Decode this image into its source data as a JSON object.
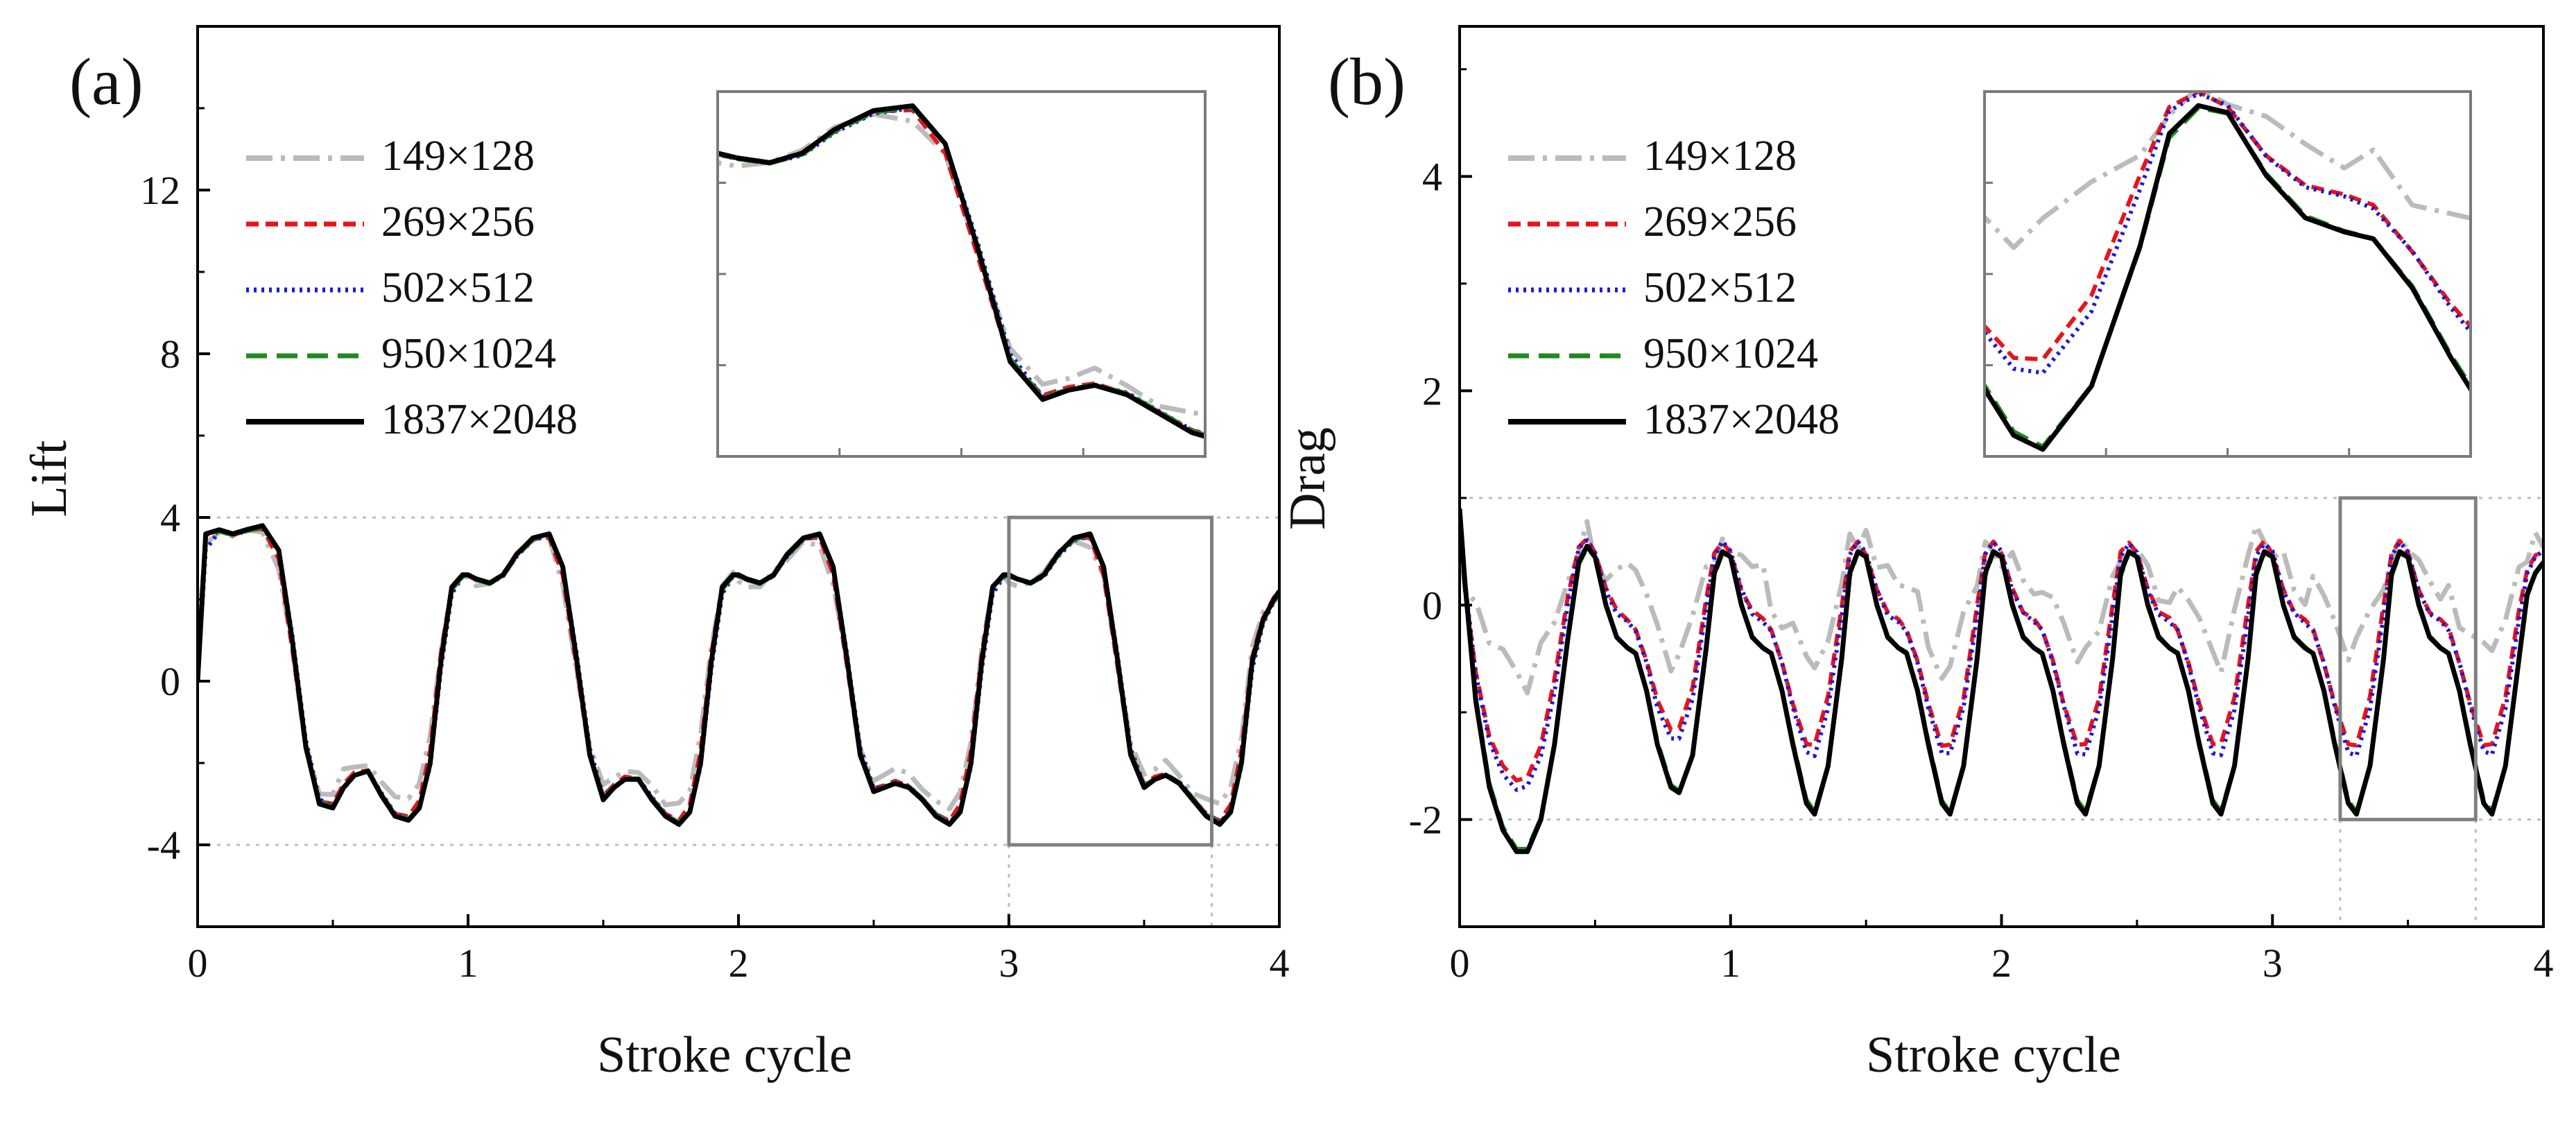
{
  "chart_data": [
    {
      "id": "a",
      "type": "line",
      "panel_label": "(a)",
      "xlabel": "Stroke cycle",
      "ylabel": "Lift",
      "xlim": [
        0,
        4
      ],
      "ylim": [
        -6,
        16
      ],
      "xticks": [
        0,
        1,
        2,
        3,
        4
      ],
      "xtick_labels": [
        "0",
        "1",
        "2",
        "3",
        "4"
      ],
      "yticks": [
        -4,
        0,
        4,
        8,
        12
      ],
      "ytick_labels": [
        "-4",
        "0",
        "4",
        "8",
        "12"
      ],
      "guide_lines_y": [
        4,
        -4
      ],
      "zoom_box": {
        "x": [
          3,
          3.75
        ],
        "y": [
          -4,
          4
        ]
      },
      "legend": [
        "149×128",
        "269×256",
        "502×512",
        "950×1024",
        "1837×2048"
      ],
      "legend_position": "top-left",
      "inset_position": "top-right",
      "series": [
        {
          "name": "1837×2048",
          "color": "#000000",
          "x": [
            0,
            0.03,
            0.08,
            0.13,
            0.18,
            0.24,
            0.3,
            0.35,
            0.4,
            0.45,
            0.5,
            0.54,
            0.58,
            0.63,
            0.68,
            0.73,
            0.78,
            0.82,
            0.86,
            0.9,
            0.94,
            0.98,
            1.0,
            1.03,
            1.08,
            1.13,
            1.18,
            1.24,
            1.3,
            1.35,
            1.4,
            1.45,
            1.5,
            1.54,
            1.58,
            1.63,
            1.68,
            1.73,
            1.78,
            1.82,
            1.86,
            1.9,
            1.94,
            1.98,
            2.0,
            2.03,
            2.08,
            2.13,
            2.18,
            2.24,
            2.3,
            2.35,
            2.4,
            2.45,
            2.5,
            2.54,
            2.58,
            2.63,
            2.68,
            2.73,
            2.78,
            2.82,
            2.86,
            2.9,
            2.94,
            2.98,
            3.0,
            3.03,
            3.08,
            3.13,
            3.18,
            3.24,
            3.3,
            3.35,
            3.4,
            3.45,
            3.5,
            3.54,
            3.58,
            3.63,
            3.68,
            3.73,
            3.78,
            3.82,
            3.86,
            3.9,
            3.94,
            3.98,
            4.0
          ],
          "values": [
            0,
            3.6,
            3.7,
            3.6,
            3.7,
            3.8,
            3.2,
            1.0,
            -1.6,
            -3.0,
            -3.1,
            -2.6,
            -2.3,
            -2.2,
            -2.8,
            -3.3,
            -3.4,
            -3.1,
            -2.0,
            0.5,
            2.3,
            2.6,
            2.6,
            2.5,
            2.4,
            2.6,
            3.1,
            3.5,
            3.6,
            2.8,
            0.6,
            -1.8,
            -2.9,
            -2.6,
            -2.4,
            -2.4,
            -2.9,
            -3.3,
            -3.5,
            -3.2,
            -2.0,
            0.5,
            2.3,
            2.6,
            2.6,
            2.5,
            2.4,
            2.6,
            3.1,
            3.5,
            3.6,
            2.8,
            0.6,
            -1.8,
            -2.7,
            -2.6,
            -2.5,
            -2.6,
            -2.9,
            -3.3,
            -3.5,
            -3.2,
            -2.0,
            0.5,
            2.3,
            2.6,
            2.6,
            2.5,
            2.4,
            2.6,
            3.1,
            3.5,
            3.6,
            2.8,
            0.6,
            -1.8,
            -2.6,
            -2.4,
            -2.3,
            -2.5,
            -2.9,
            -3.3,
            -3.5,
            -3.2,
            -2.0,
            0.5,
            1.5,
            2.0,
            2.2
          ]
        }
      ]
    },
    {
      "id": "b",
      "type": "line",
      "panel_label": "(b)",
      "xlabel": "Stroke cycle",
      "ylabel": "Drag",
      "xlim": [
        0,
        4
      ],
      "ylim": [
        -3,
        5.4
      ],
      "xticks": [
        0,
        1,
        2,
        3,
        4
      ],
      "xtick_labels": [
        "0",
        "1",
        "2",
        "3",
        "4"
      ],
      "yticks": [
        -2,
        0,
        2,
        4
      ],
      "ytick_labels": [
        "-2",
        "0",
        "2",
        "4"
      ],
      "guide_lines_y": [
        1,
        -2
      ],
      "zoom_box": {
        "x": [
          3.25,
          3.75
        ],
        "y": [
          -2,
          1
        ]
      },
      "legend": [
        "149×128",
        "269×256",
        "502×512",
        "950×1024",
        "1837×2048"
      ],
      "legend_position": "top-left",
      "inset_position": "top-right",
      "series": [
        {
          "name": "1837×2048",
          "color": "#000000",
          "x": [
            0,
            0.02,
            0.06,
            0.11,
            0.16,
            0.21,
            0.25,
            0.3,
            0.35,
            0.4,
            0.44,
            0.47,
            0.5,
            0.54,
            0.58,
            0.62,
            0.65,
            0.69,
            0.73,
            0.78,
            0.81,
            0.86,
            0.91,
            0.94,
            0.97,
            1.0,
            1.04,
            1.08,
            1.12,
            1.15,
            1.19,
            1.23,
            1.28,
            1.31,
            1.36,
            1.41,
            1.44,
            1.47,
            1.5,
            1.54,
            1.58,
            1.62,
            1.65,
            1.69,
            1.73,
            1.78,
            1.81,
            1.86,
            1.91,
            1.94,
            1.97,
            2.0,
            2.04,
            2.08,
            2.12,
            2.15,
            2.19,
            2.23,
            2.28,
            2.31,
            2.36,
            2.41,
            2.44,
            2.47,
            2.5,
            2.54,
            2.58,
            2.62,
            2.65,
            2.69,
            2.73,
            2.78,
            2.81,
            2.86,
            2.91,
            2.94,
            2.97,
            3.0,
            3.04,
            3.08,
            3.12,
            3.15,
            3.19,
            3.23,
            3.28,
            3.31,
            3.36,
            3.41,
            3.44,
            3.47,
            3.5,
            3.54,
            3.58,
            3.62,
            3.65,
            3.69,
            3.73,
            3.78,
            3.81,
            3.86,
            3.91,
            3.94,
            3.97,
            4.0
          ],
          "values": [
            0.9,
            0.2,
            -0.9,
            -1.7,
            -2.1,
            -2.3,
            -2.3,
            -2.0,
            -1.3,
            -0.3,
            0.4,
            0.55,
            0.45,
            0.0,
            -0.3,
            -0.4,
            -0.45,
            -0.8,
            -1.3,
            -1.7,
            -1.75,
            -1.4,
            -0.4,
            0.3,
            0.5,
            0.45,
            0.0,
            -0.3,
            -0.4,
            -0.45,
            -0.8,
            -1.3,
            -1.85,
            -1.95,
            -1.5,
            -0.5,
            0.3,
            0.5,
            0.45,
            0.0,
            -0.3,
            -0.4,
            -0.45,
            -0.8,
            -1.3,
            -1.85,
            -1.95,
            -1.5,
            -0.5,
            0.3,
            0.5,
            0.45,
            0.0,
            -0.3,
            -0.4,
            -0.45,
            -0.8,
            -1.3,
            -1.85,
            -1.95,
            -1.5,
            -0.5,
            0.3,
            0.5,
            0.45,
            0.0,
            -0.3,
            -0.4,
            -0.45,
            -0.8,
            -1.3,
            -1.85,
            -1.95,
            -1.5,
            -0.5,
            0.3,
            0.5,
            0.45,
            0.0,
            -0.3,
            -0.4,
            -0.45,
            -0.8,
            -1.3,
            -1.85,
            -1.95,
            -1.5,
            -0.5,
            0.3,
            0.5,
            0.45,
            0.0,
            -0.3,
            -0.4,
            -0.45,
            -0.8,
            -1.3,
            -1.85,
            -1.95,
            -1.5,
            -0.5,
            0.1,
            0.3,
            0.4
          ]
        }
      ]
    }
  ],
  "series_styles": {
    "149×128": {
      "color": "#bbbbbb",
      "dash": "38 12 6 12",
      "width": 7
    },
    "269×256": {
      "color": "#e8141c",
      "dash": "18 10",
      "width": 6
    },
    "502×512": {
      "color": "#1a1ad6",
      "dash": "4 7",
      "width": 6
    },
    "950×1024": {
      "color": "#1f8a1f",
      "dash": "30 14",
      "width": 6
    },
    "1837×2048": {
      "color": "#000000",
      "dash": "",
      "width": 7
    }
  }
}
